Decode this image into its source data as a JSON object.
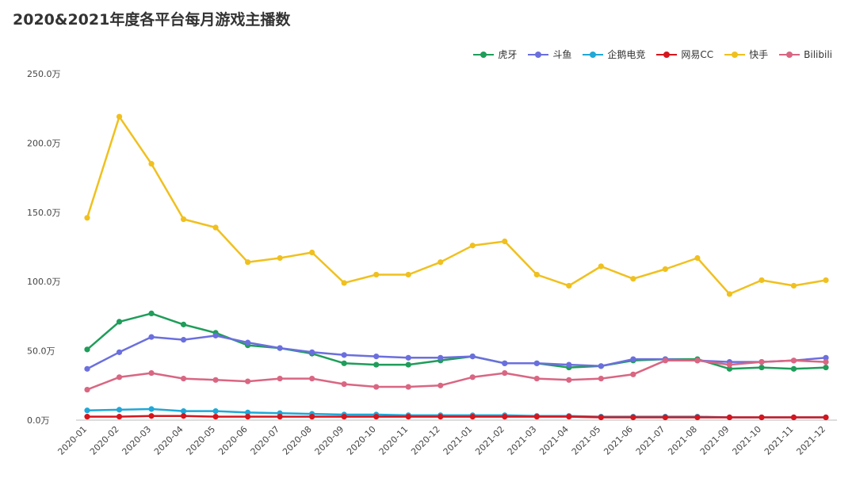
{
  "chart_data": {
    "type": "line",
    "title": "2020&2021年度各平台每月游戏主播数",
    "xlabel": "",
    "ylabel": "",
    "ylim": [
      0,
      250
    ],
    "unit": "万",
    "y_ticks": [
      "0.0万",
      "50.0万",
      "100.0万",
      "150.0万",
      "200.0万",
      "250.0万"
    ],
    "y_tick_values": [
      0,
      50,
      100,
      150,
      200,
      250
    ],
    "categories": [
      "2020-01",
      "2020-02",
      "2020-03",
      "2020-04",
      "2020-05",
      "2020-06",
      "2020-07",
      "2020-08",
      "2020-09",
      "2020-10",
      "2020-11",
      "2020-12",
      "2021-01",
      "2021-02",
      "2021-03",
      "2021-04",
      "2021-05",
      "2021-06",
      "2021-07",
      "2021-08",
      "2021-09",
      "2021-10",
      "2021-11",
      "2021-12"
    ],
    "series": [
      {
        "name": "虎牙",
        "color": "#1f9d5a",
        "values": [
          51,
          71,
          77,
          69,
          63,
          54,
          52,
          48,
          41,
          40,
          40,
          43,
          46,
          41,
          41,
          38,
          39,
          43,
          44,
          44,
          37,
          38,
          37,
          38
        ]
      },
      {
        "name": "斗鱼",
        "color": "#6b6fde",
        "values": [
          37,
          49,
          60,
          58,
          61,
          56,
          52,
          49,
          47,
          46,
          45,
          45,
          46,
          41,
          41,
          40,
          39,
          44,
          44,
          43,
          42,
          42,
          43,
          45
        ]
      },
      {
        "name": "企鹅电竞",
        "color": "#1fa8d8",
        "values": [
          7,
          7.5,
          8,
          6.5,
          6.5,
          5.5,
          5,
          4.5,
          4,
          4,
          3.5,
          3.5,
          3.5,
          3.5,
          3,
          3,
          2.5,
          2.5,
          2.5,
          2.5,
          2,
          2,
          2,
          2
        ]
      },
      {
        "name": "网易CC",
        "color": "#d6151d",
        "values": [
          2.5,
          2.5,
          3,
          3,
          2.5,
          2.5,
          2.5,
          2.5,
          2.5,
          2.5,
          2.5,
          2.5,
          2.5,
          2.5,
          2.5,
          2.5,
          2,
          2,
          2,
          2,
          2,
          2,
          2,
          2
        ]
      },
      {
        "name": "快手",
        "color": "#f0c01e",
        "values": [
          146,
          219,
          185,
          145,
          139,
          114,
          117,
          121,
          99,
          105,
          105,
          114,
          126,
          129,
          105,
          97,
          111,
          102,
          109,
          117,
          91,
          101,
          97,
          101
        ]
      },
      {
        "name": "Bilibili",
        "color": "#d96682",
        "values": [
          22,
          31,
          34,
          30,
          29,
          28,
          30,
          30,
          26,
          24,
          24,
          25,
          31,
          34,
          30,
          29,
          30,
          33,
          43,
          43,
          40,
          42,
          43,
          42
        ]
      }
    ]
  }
}
